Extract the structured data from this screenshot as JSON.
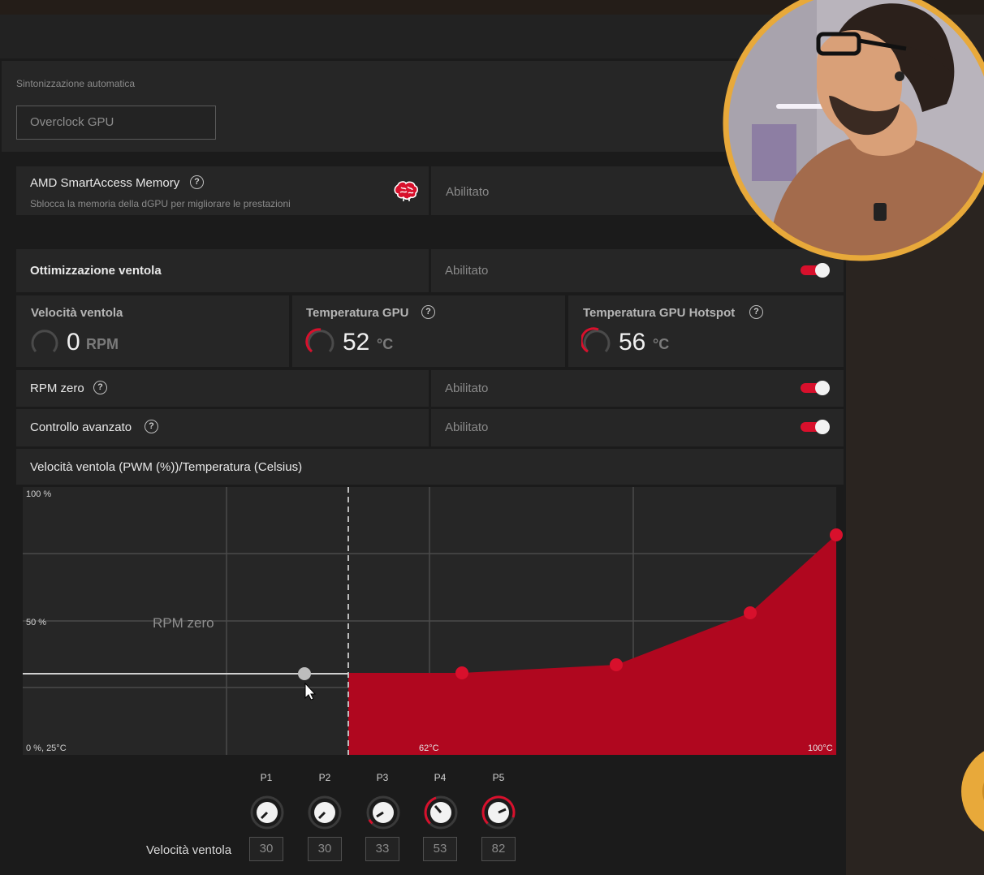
{
  "auto_tuning": {
    "label": "Sintonizzazione automatica",
    "selected": "Overclock GPU"
  },
  "smart_access_memory": {
    "title": "AMD SmartAccess Memory",
    "help": "?",
    "description": "Sblocca la memoria della dGPU per migliorare le prestazioni",
    "value": "Abilitato",
    "icon": "brain-icon"
  },
  "fan_tuning": {
    "title": "Ottimizzazione ventola",
    "value": "Abilitato",
    "enabled": true
  },
  "metrics": [
    {
      "label": "Velocità ventola",
      "value": "0",
      "unit": "RPM",
      "has_help": false
    },
    {
      "label": "Temperatura GPU",
      "value": "52",
      "unit": "°C",
      "has_help": true
    },
    {
      "label": "Temperatura GPU Hotspot",
      "value": "56",
      "unit": "°C",
      "has_help": true
    }
  ],
  "zero_rpm": {
    "title": "RPM zero",
    "help": "?",
    "value": "Abilitato",
    "enabled": true
  },
  "advanced_control": {
    "title": "Controllo avanzato",
    "help": "?",
    "value": "Abilitato",
    "enabled": true
  },
  "fan_curve": {
    "title": "Velocità ventola (PWM (%))/Temperatura (Celsius)",
    "zero_rpm_label": "RPM zero",
    "y_labels": {
      "top": "100 %",
      "mid": "50 %",
      "origin": "0 %, 25°C"
    },
    "x_labels": {
      "mid": "62°C",
      "max": "100°C"
    },
    "points_header": [
      "P1",
      "P2",
      "P3",
      "P4",
      "P5"
    ],
    "speed_label": "Velocità ventola",
    "speed_values": [
      "30",
      "30",
      "33",
      "53",
      "82"
    ]
  },
  "colors": {
    "accent": "#d8102c",
    "fill": "#b0071f",
    "pip_border": "#e8a93a"
  }
}
